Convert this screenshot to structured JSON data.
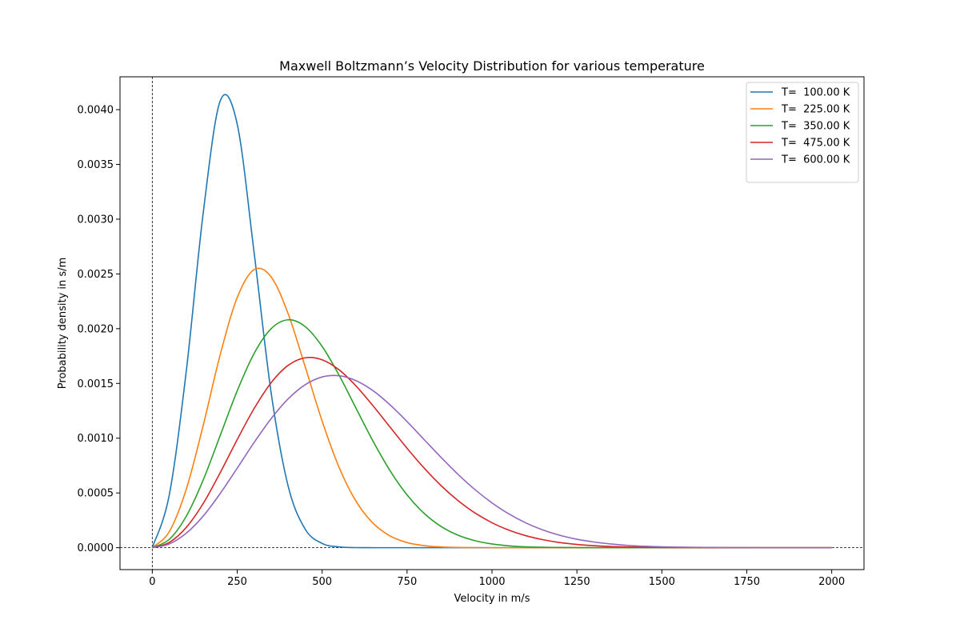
{
  "chart_data": {
    "type": "line",
    "title": "Maxwell Boltzmann’s Velocity Distribution for various temperature",
    "xlabel": "Velocity in m/s",
    "ylabel": "Probability density in s/m",
    "xlim": [
      -95,
      2095
    ],
    "ylim": [
      -0.0002,
      0.0043
    ],
    "x_ticks": [
      0,
      250,
      500,
      750,
      1000,
      1250,
      1500,
      1750,
      2000
    ],
    "x_tick_labels": [
      "0",
      "250",
      "500",
      "750",
      "1000",
      "1250",
      "1500",
      "1750",
      "2000"
    ],
    "y_ticks": [
      0,
      0.0005,
      0.001,
      0.0015,
      0.002,
      0.0025,
      0.003,
      0.0035,
      0.004
    ],
    "y_tick_labels": [
      "0.0000",
      "0.0005",
      "0.0010",
      "0.0015",
      "0.0020",
      "0.0025",
      "0.0030",
      "0.0035",
      "0.0040"
    ],
    "grid": false,
    "legend_position": "top-right",
    "reference_lines": {
      "vertical_at_x": 0,
      "horizontal_at_y": 0,
      "style": "dashed"
    },
    "x": [
      0,
      50,
      100,
      150,
      200,
      250,
      300,
      350,
      400,
      450,
      500,
      550,
      600,
      650,
      700,
      750,
      800,
      850,
      900,
      950,
      1000,
      1050,
      1100,
      1150,
      1200,
      1250,
      1300,
      1350,
      1400,
      1450,
      1500,
      1550,
      1600,
      1650,
      1700,
      1750,
      1800,
      1850,
      1900,
      1950,
      2000
    ],
    "series": [
      {
        "name": "T=  100.00 K",
        "color": "#1f77b4",
        "values": [
          0,
          0.000481,
          0.00161,
          0.003058,
          0.00408,
          0.003868,
          0.002688,
          0.001413,
          0.000562,
          0.00017,
          3.9e-05,
          7e-06,
          1e-06,
          0,
          0,
          0,
          0,
          0,
          0,
          0,
          0,
          0,
          0,
          0,
          0,
          0,
          0,
          0,
          0,
          0,
          0,
          0,
          0,
          0,
          0,
          0,
          0,
          0,
          0,
          0,
          0
        ]
      },
      {
        "name": "T=  225.00 K",
        "color": "#ff7f0e",
        "values": [
          0,
          0.000146,
          0.000533,
          0.001118,
          0.001763,
          0.002284,
          0.00254,
          0.002473,
          0.002136,
          0.001654,
          0.001156,
          0.000733,
          0.000423,
          0.000223,
          0.000107,
          4.7e-05,
          1.9e-05,
          7e-06,
          2e-06,
          1e-06,
          0,
          0,
          0,
          0,
          0,
          0,
          0,
          0,
          0,
          0,
          0,
          0,
          0,
          0,
          0,
          0,
          0,
          0,
          0,
          0,
          0
        ]
      },
      {
        "name": "T=  350.00 K",
        "color": "#2ca02c",
        "values": [
          0,
          7.6e-05,
          0.000287,
          0.000619,
          0.001025,
          0.001432,
          0.001775,
          0.002,
          0.002081,
          0.002019,
          0.001838,
          0.001574,
          0.001272,
          0.000972,
          0.000703,
          0.000482,
          0.000314,
          0.000194,
          0.000114,
          6.4e-05,
          3.4e-05,
          1.7e-05,
          8e-06,
          4e-06,
          2e-06,
          1e-06,
          0,
          0,
          0,
          0,
          0,
          0,
          0,
          0,
          0,
          0,
          0,
          0,
          0,
          0,
          0
        ]
      },
      {
        "name": "T=  475.00 K",
        "color": "#d62728",
        "values": [
          0,
          4.8e-05,
          0.000185,
          0.000404,
          0.000685,
          0.000987,
          0.001272,
          0.001507,
          0.001665,
          0.001734,
          0.001716,
          0.001624,
          0.001476,
          0.001295,
          0.001101,
          0.000908,
          0.000728,
          0.000567,
          0.00043,
          0.000317,
          0.000228,
          0.00016,
          0.000109,
          7.3e-05,
          4.7e-05,
          3e-05,
          1.9e-05,
          1.1e-05,
          7e-06,
          4e-06,
          2e-06,
          1e-06,
          1e-06,
          0,
          0,
          0,
          0,
          0,
          0,
          0,
          0
        ]
      },
      {
        "name": "T=  600.00 K",
        "color": "#9467bd",
        "values": [
          0,
          3.4e-05,
          0.000132,
          0.000289,
          0.000495,
          0.000726,
          0.000962,
          0.001179,
          0.001359,
          0.001488,
          0.001559,
          0.00157,
          0.001525,
          0.001433,
          0.001304,
          0.001152,
          0.000988,
          0.000825,
          0.00067,
          0.00053,
          0.000409,
          0.000308,
          0.000226,
          0.000162,
          0.000113,
          7.7e-05,
          5.2e-05,
          3.4e-05,
          2.1e-05,
          1.3e-05,
          8e-06,
          5e-06,
          3e-06,
          2e-06,
          1e-06,
          1e-06,
          0,
          0,
          0,
          0,
          0
        ]
      }
    ]
  }
}
